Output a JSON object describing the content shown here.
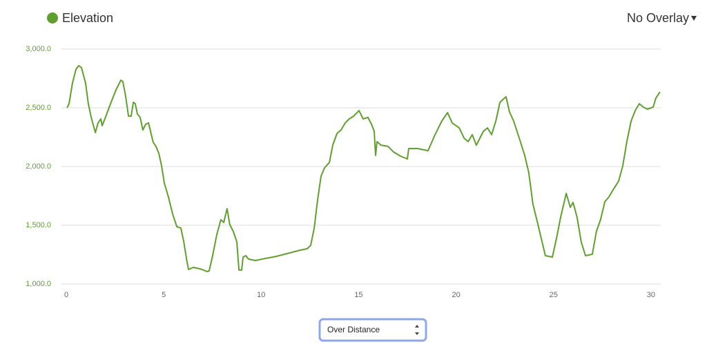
{
  "chart_data": {
    "type": "line",
    "series": [
      {
        "name": "Elevation",
        "color": "#5f9e2f",
        "values": [
          2500,
          2535,
          2712,
          2829,
          2859,
          2841,
          2712,
          2535,
          2418,
          2288,
          2371,
          2406,
          2347,
          2406,
          2535,
          2653,
          2735,
          2724,
          2594,
          2429,
          2429,
          2547,
          2535,
          2447,
          2418,
          2312,
          2359,
          2371,
          2300,
          2206,
          2171,
          2112,
          2006,
          1859,
          1741,
          1594,
          1488,
          1476,
          1359,
          1212,
          1124,
          1141,
          1129,
          1106,
          1112,
          1241,
          1418,
          1547,
          1524,
          1641,
          1506,
          1447,
          1359,
          1118,
          1118,
          1229,
          1241,
          1212,
          1200,
          1218,
          1235,
          1265,
          1288,
          1300,
          1329,
          1476,
          1712,
          1918,
          1988,
          2035,
          2182,
          2282,
          2312,
          2371,
          2406,
          2429,
          2476,
          2406,
          2418,
          2359,
          2300,
          2094,
          2212,
          2182,
          2171,
          2124,
          2088,
          2065,
          2153,
          2153,
          2135,
          2271,
          2388,
          2459,
          2371,
          2329,
          2241,
          2212,
          2271,
          2182,
          2300,
          2329,
          2271,
          2388,
          2547,
          2594,
          2465,
          2388,
          2241,
          2094,
          1947,
          1682,
          1535,
          1359,
          1241,
          1229,
          1388,
          1565,
          1771,
          1653,
          1694,
          1565,
          1359,
          1241,
          1253,
          1447,
          1547,
          1700,
          1741,
          1800,
          1876,
          2006,
          2212,
          2388,
          2476,
          2535,
          2506,
          2488,
          2506,
          2582,
          2635
        ]
      }
    ],
    "x": [
      0.04,
      0.14,
      0.32,
      0.5,
      0.64,
      0.78,
      0.99,
      1.13,
      1.28,
      1.49,
      1.63,
      1.77,
      1.84,
      1.98,
      2.27,
      2.55,
      2.8,
      2.9,
      3.05,
      3.19,
      3.33,
      3.44,
      3.54,
      3.65,
      3.79,
      3.93,
      4.07,
      4.22,
      4.32,
      4.46,
      4.6,
      4.75,
      4.89,
      5.03,
      5.24,
      5.46,
      5.67,
      5.88,
      6.03,
      6.17,
      6.27,
      6.52,
      6.87,
      7.23,
      7.33,
      7.51,
      7.72,
      7.93,
      8.08,
      8.25,
      8.39,
      8.57,
      8.75,
      8.86,
      9.0,
      9.07,
      9.21,
      9.35,
      9.71,
      10.24,
      10.77,
      11.48,
      12.01,
      12.36,
      12.54,
      12.72,
      12.89,
      13.07,
      13.25,
      13.5,
      13.67,
      13.89,
      14.1,
      14.31,
      14.52,
      14.74,
      15.02,
      15.23,
      15.48,
      15.66,
      15.8,
      15.87,
      15.94,
      16.15,
      16.51,
      16.79,
      17.15,
      17.5,
      17.57,
      18.03,
      18.56,
      18.92,
      19.27,
      19.56,
      19.8,
      20.16,
      20.41,
      20.62,
      20.83,
      21.04,
      21.4,
      21.61,
      21.82,
      22.04,
      22.25,
      22.56,
      22.74,
      22.95,
      23.24,
      23.52,
      23.73,
      23.94,
      24.16,
      24.41,
      24.58,
      24.94,
      25.15,
      25.36,
      25.65,
      25.86,
      26.0,
      26.21,
      26.42,
      26.64,
      26.99,
      27.2,
      27.41,
      27.63,
      27.84,
      28.05,
      28.34,
      28.55,
      28.76,
      28.98,
      29.19,
      29.4,
      29.61,
      29.82,
      30.11,
      30.25,
      30.46
    ],
    "xlim": [
      0,
      30.5
    ],
    "ylim": [
      1000,
      3000
    ],
    "xticks": [
      0,
      5,
      10,
      15,
      20,
      25,
      30
    ],
    "yticks": [
      {
        "value": 1000,
        "label": "1,000.0"
      },
      {
        "value": 1500,
        "label": "1,500.0"
      },
      {
        "value": 2000,
        "label": "2,000.0"
      },
      {
        "value": 2500,
        "label": "2,500.0"
      },
      {
        "value": 3000,
        "label": "3,000.0"
      }
    ],
    "grid": true
  },
  "overlay_menu": "No Overlay",
  "distance_select": "Over Distance"
}
